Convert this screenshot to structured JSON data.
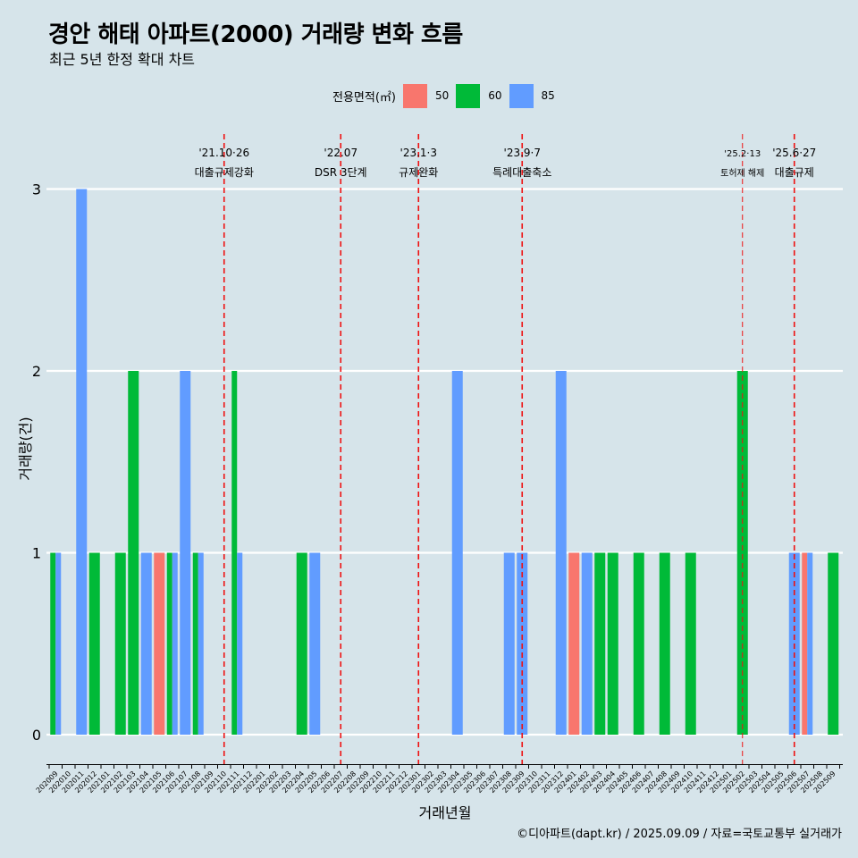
{
  "title": "경안 해태 아파트(2000) 거래량 변화 흐름",
  "subtitle": "최근 5년 한정 확대 차트",
  "caption": "©디아파트(dapt.kr) / 2025.09.09 / 자료=국토교통부 실거래가",
  "legend": {
    "title": "전용면적(㎡)",
    "items": [
      {
        "label": "50",
        "color": "#F8766D"
      },
      {
        "label": "60",
        "color": "#00BA38"
      },
      {
        "label": "85",
        "color": "#619CFF"
      }
    ]
  },
  "chart_data": {
    "type": "bar",
    "xlabel": "거래년월",
    "ylabel": "거래량(건)",
    "ylim": [
      0,
      3
    ],
    "yticks": [
      0,
      1,
      2,
      3
    ],
    "grid": true,
    "legend_position": "top",
    "categories": [
      "202009",
      "202010",
      "202011",
      "202012",
      "202101",
      "202102",
      "202103",
      "202104",
      "202105",
      "202106",
      "202107",
      "202108",
      "202109",
      "202110",
      "202111",
      "202112",
      "202201",
      "202202",
      "202203",
      "202204",
      "202205",
      "202206",
      "202207",
      "202208",
      "202209",
      "202210",
      "202211",
      "202212",
      "202301",
      "202302",
      "202303",
      "202304",
      "202305",
      "202306",
      "202307",
      "202308",
      "202309",
      "202310",
      "202311",
      "202312",
      "202401",
      "202402",
      "202403",
      "202404",
      "202405",
      "202406",
      "202407",
      "202408",
      "202409",
      "202410",
      "202411",
      "202412",
      "202501",
      "202502",
      "202503",
      "202504",
      "202505",
      "202506",
      "202507",
      "202508",
      "202509"
    ],
    "series": [
      {
        "name": "50",
        "color": "#F8766D",
        "values": [
          0,
          0,
          0,
          0,
          0,
          0,
          0,
          0,
          1,
          0,
          0,
          0,
          0,
          0,
          0,
          0,
          0,
          0,
          0,
          0,
          0,
          0,
          0,
          0,
          0,
          0,
          0,
          0,
          0,
          0,
          0,
          0,
          0,
          0,
          0,
          0,
          0,
          0,
          0,
          0,
          1,
          0,
          0,
          0,
          0,
          0,
          0,
          0,
          0,
          0,
          0,
          0,
          0,
          0,
          0,
          0,
          0,
          0,
          1,
          0,
          0
        ]
      },
      {
        "name": "60",
        "color": "#00BA38",
        "values": [
          1,
          0,
          0,
          1,
          0,
          1,
          2,
          0,
          0,
          1,
          0,
          1,
          0,
          0,
          2,
          0,
          0,
          0,
          0,
          1,
          0,
          0,
          0,
          0,
          0,
          0,
          0,
          0,
          0,
          0,
          0,
          0,
          0,
          0,
          0,
          0,
          0,
          0,
          0,
          0,
          0,
          0,
          1,
          1,
          0,
          1,
          0,
          1,
          0,
          1,
          0,
          0,
          0,
          2,
          0,
          0,
          0,
          0,
          0,
          0,
          1
        ]
      },
      {
        "name": "85",
        "color": "#619CFF",
        "values": [
          1,
          0,
          3,
          0,
          0,
          0,
          0,
          1,
          0,
          1,
          2,
          1,
          0,
          0,
          1,
          0,
          0,
          0,
          0,
          0,
          1,
          0,
          0,
          0,
          0,
          0,
          0,
          0,
          0,
          0,
          0,
          2,
          0,
          0,
          0,
          1,
          1,
          0,
          0,
          2,
          0,
          1,
          0,
          0,
          0,
          0,
          0,
          0,
          0,
          0,
          0,
          0,
          0,
          0,
          0,
          0,
          0,
          1,
          1,
          0,
          0
        ]
      }
    ],
    "annotations": [
      {
        "line1": "'21.10·26",
        "line2": "대출규제강화",
        "at": "202110",
        "small": false
      },
      {
        "line1": "'22.07",
        "line2": "DSR 3단계",
        "at": "202207",
        "small": false
      },
      {
        "line1": "'23.1·3",
        "line2": "규제완화",
        "at": "202301",
        "small": false
      },
      {
        "line1": "'23.9·7",
        "line2": "특례대출축소",
        "at": "202309",
        "small": false
      },
      {
        "line1": "'25.2·13",
        "line2": "토허제 해제",
        "at": "202502",
        "small": true
      },
      {
        "line1": "'25.6·27",
        "line2": "대출규제",
        "at": "202506",
        "small": false
      }
    ]
  }
}
